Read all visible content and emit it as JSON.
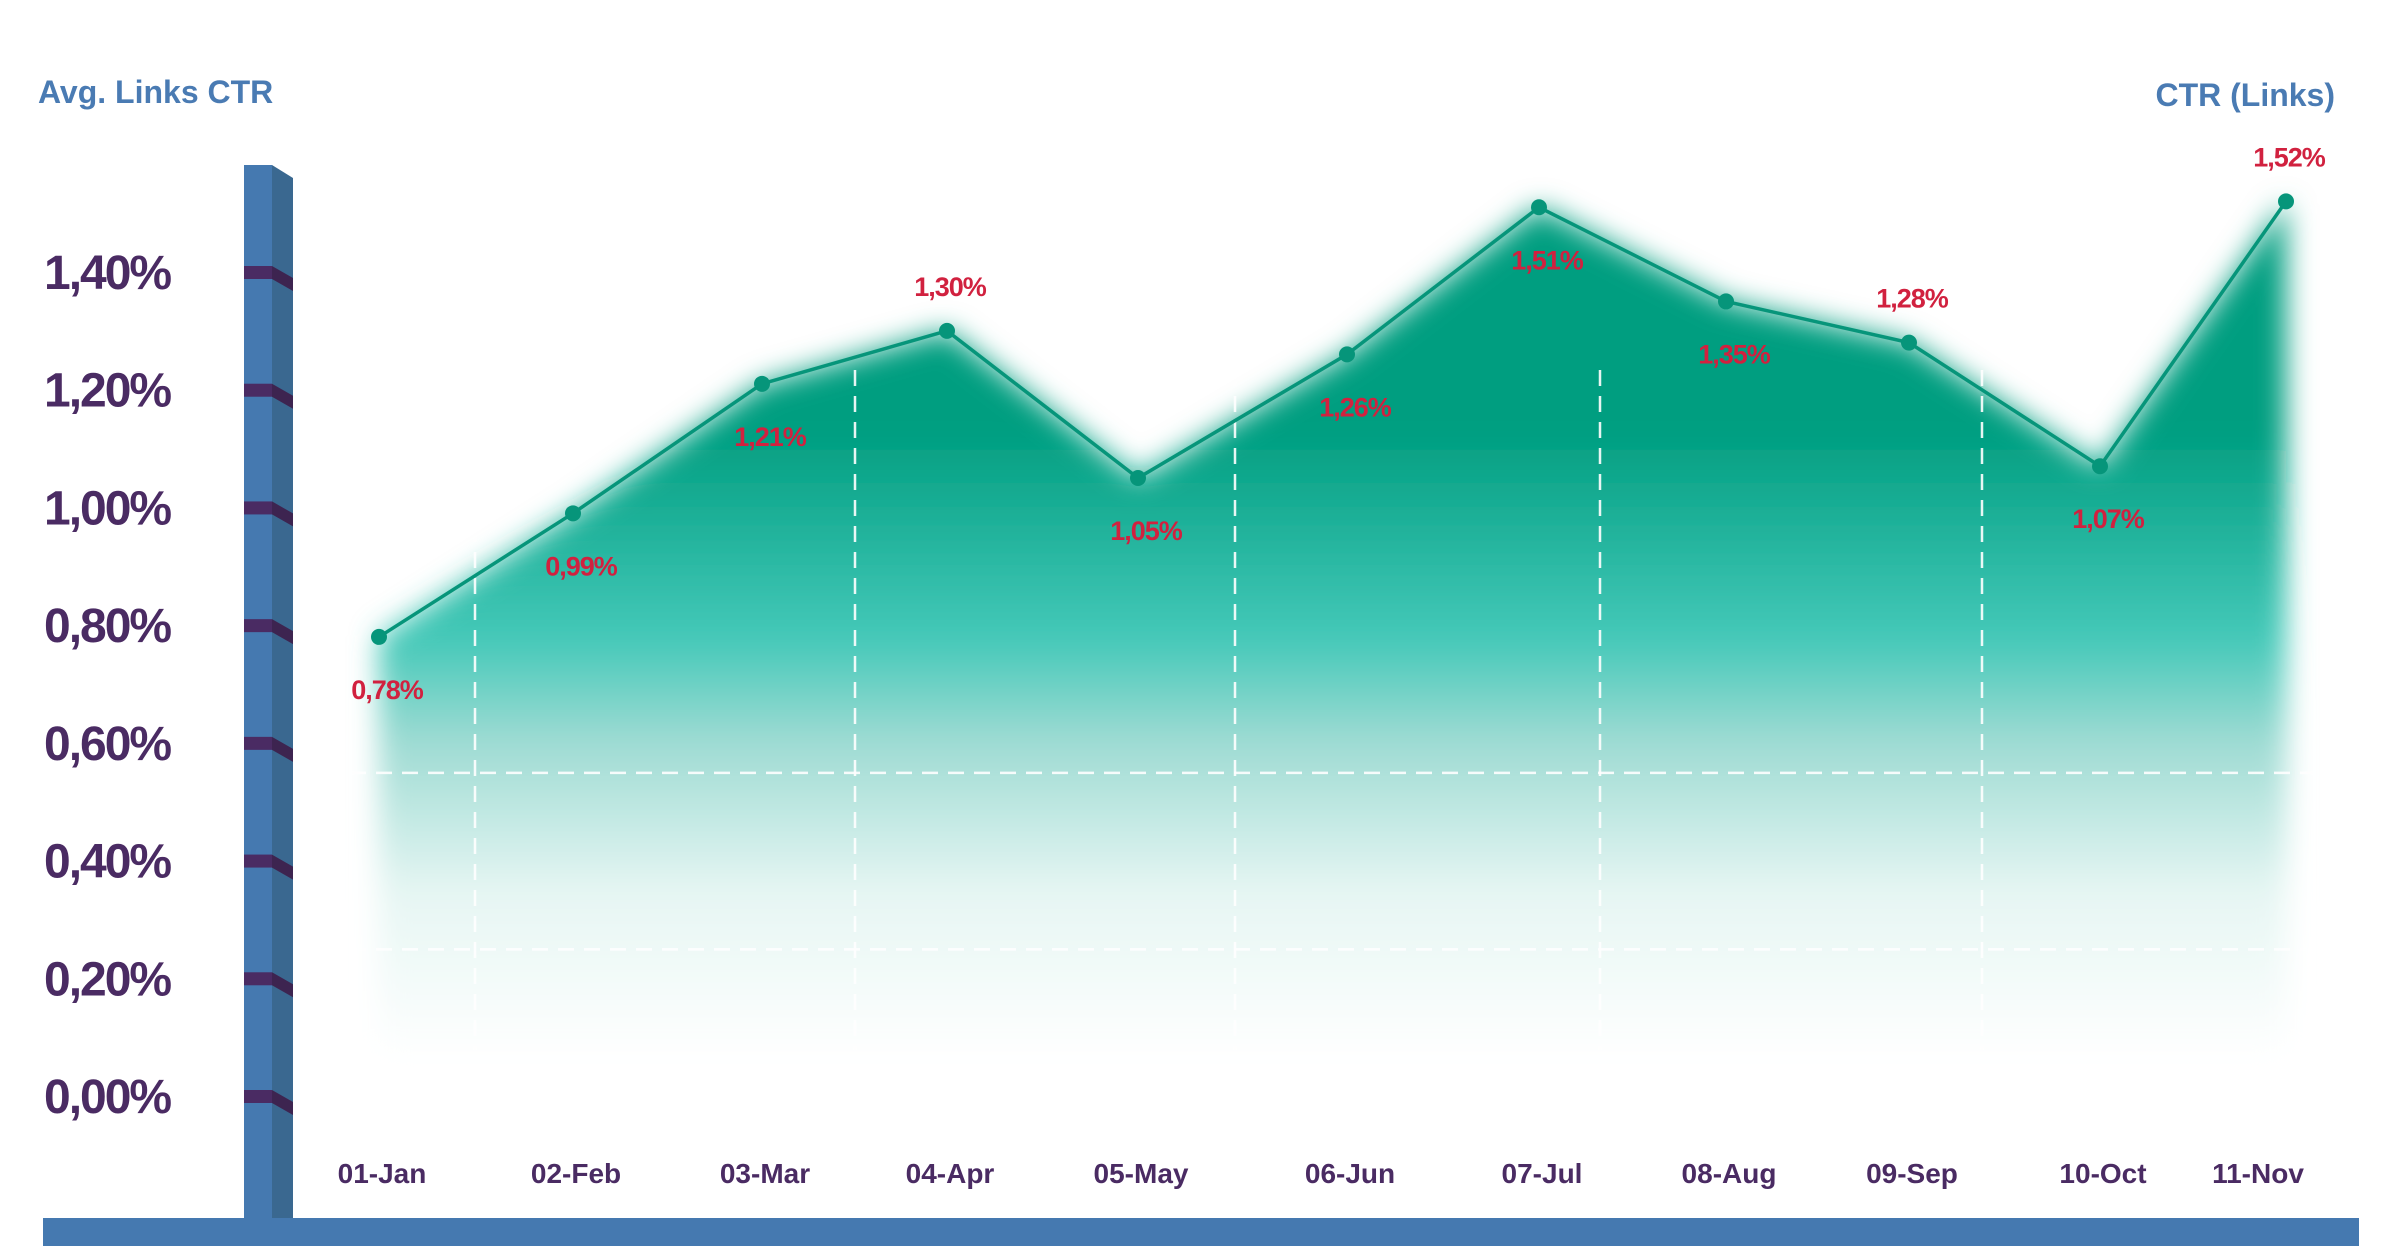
{
  "chart_data": {
    "type": "area",
    "title": "",
    "ylabel": "Avg. Links CTR",
    "series_label": "CTR (Links)",
    "categories": [
      "01-Jan",
      "02-Feb",
      "03-Mar",
      "04-Apr",
      "05-May",
      "06-Jun",
      "07-Jul",
      "08-Aug",
      "09-Sep",
      "10-Oct",
      "11-Nov"
    ],
    "values": [
      0.78,
      0.99,
      1.21,
      1.3,
      1.05,
      1.26,
      1.51,
      1.35,
      1.28,
      1.07,
      1.52
    ],
    "data_labels": [
      "0,78%",
      "0,99%",
      "1,21%",
      "1,30%",
      "1,05%",
      "1,26%",
      "1,51%",
      "1,35%",
      "1,28%",
      "1,07%",
      "1,52%"
    ],
    "yticks": [
      "0,00%",
      "0,20%",
      "0,40%",
      "0,60%",
      "0,80%",
      "1,00%",
      "1,20%",
      "1,40%"
    ],
    "ytick_values": [
      0,
      0.2,
      0.4,
      0.6,
      0.8,
      1.0,
      1.2,
      1.4
    ],
    "ylim": [
      0,
      1.4
    ],
    "grid": "dashed white",
    "colors": {
      "line": "#06957a",
      "fill_top": "#009e80",
      "fill_mid": "#45c9b9",
      "label": "#d1213f",
      "axis": "#4579b0",
      "tick": "#4a2b63"
    }
  }
}
